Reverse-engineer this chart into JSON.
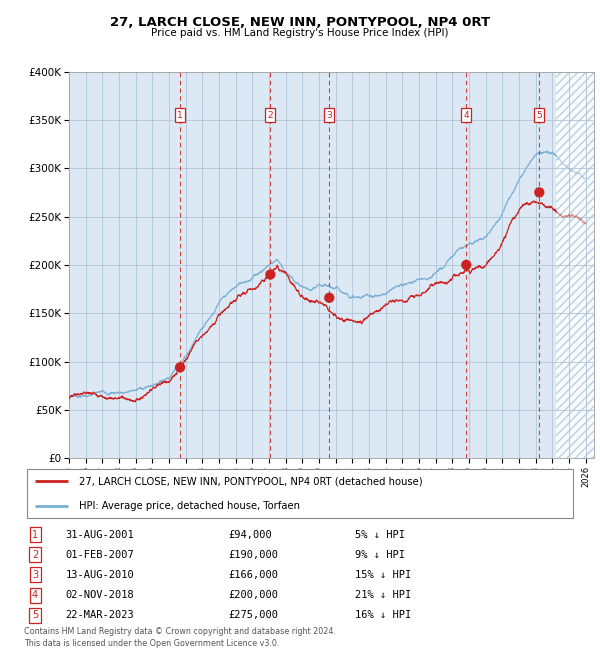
{
  "title": "27, LARCH CLOSE, NEW INN, PONTYPOOL, NP4 0RT",
  "subtitle": "Price paid vs. HM Land Registry's House Price Index (HPI)",
  "legend_line1": "27, LARCH CLOSE, NEW INN, PONTYPOOL, NP4 0RT (detached house)",
  "legend_line2": "HPI: Average price, detached house, Torfaen",
  "footer_line1": "Contains HM Land Registry data © Crown copyright and database right 2024.",
  "footer_line2": "This data is licensed under the Open Government Licence v3.0.",
  "ylim": [
    0,
    400000
  ],
  "yticks": [
    0,
    50000,
    100000,
    150000,
    200000,
    250000,
    300000,
    350000,
    400000
  ],
  "ylabels": [
    "£0",
    "£50K",
    "£100K",
    "£150K",
    "£200K",
    "£250K",
    "£300K",
    "£350K",
    "£400K"
  ],
  "xlim_start": 1995.0,
  "xlim_end": 2026.5,
  "transactions": [
    {
      "num": 1,
      "date_str": "31-AUG-2001",
      "date_x": 2001.664,
      "price": 94000,
      "pct": "5",
      "dir": "↓"
    },
    {
      "num": 2,
      "date_str": "01-FEB-2007",
      "date_x": 2007.083,
      "price": 190000,
      "pct": "9",
      "dir": "↓"
    },
    {
      "num": 3,
      "date_str": "13-AUG-2010",
      "date_x": 2010.617,
      "price": 166000,
      "pct": "15",
      "dir": "↓"
    },
    {
      "num": 4,
      "date_str": "02-NOV-2018",
      "date_x": 2018.836,
      "price": 200000,
      "pct": "21",
      "dir": "↓"
    },
    {
      "num": 5,
      "date_str": "22-MAR-2023",
      "date_x": 2023.219,
      "price": 275000,
      "pct": "16",
      "dir": "↓"
    }
  ],
  "hpi_color": "#7bafd4",
  "price_color": "#cc2222",
  "dot_color": "#cc2222",
  "vline_color": "#cc2222",
  "bg_color": "#dce9f5",
  "grid_color": "#b0c4d8",
  "box_color": "#cc2222",
  "future_cutoff": 2024.25,
  "hpi_keypoints": [
    [
      1995.0,
      64000
    ],
    [
      1996.0,
      66000
    ],
    [
      1997.0,
      68000
    ],
    [
      1998.0,
      70000
    ],
    [
      1999.0,
      73000
    ],
    [
      2000.0,
      78000
    ],
    [
      2001.0,
      90000
    ],
    [
      2002.0,
      115000
    ],
    [
      2003.0,
      148000
    ],
    [
      2004.0,
      175000
    ],
    [
      2005.0,
      188000
    ],
    [
      2006.0,
      200000
    ],
    [
      2007.0,
      215000
    ],
    [
      2007.5,
      222000
    ],
    [
      2008.0,
      210000
    ],
    [
      2008.5,
      200000
    ],
    [
      2009.0,
      195000
    ],
    [
      2009.5,
      190000
    ],
    [
      2010.0,
      192000
    ],
    [
      2010.5,
      188000
    ],
    [
      2011.0,
      185000
    ],
    [
      2011.5,
      182000
    ],
    [
      2012.0,
      180000
    ],
    [
      2012.5,
      178000
    ],
    [
      2013.0,
      180000
    ],
    [
      2013.5,
      181000
    ],
    [
      2014.0,
      183000
    ],
    [
      2014.5,
      186000
    ],
    [
      2015.0,
      190000
    ],
    [
      2015.5,
      193000
    ],
    [
      2016.0,
      196000
    ],
    [
      2016.5,
      200000
    ],
    [
      2017.0,
      205000
    ],
    [
      2017.5,
      210000
    ],
    [
      2018.0,
      218000
    ],
    [
      2018.5,
      228000
    ],
    [
      2019.0,
      235000
    ],
    [
      2019.5,
      238000
    ],
    [
      2020.0,
      240000
    ],
    [
      2020.5,
      252000
    ],
    [
      2021.0,
      268000
    ],
    [
      2021.5,
      285000
    ],
    [
      2022.0,
      305000
    ],
    [
      2022.5,
      322000
    ],
    [
      2023.0,
      335000
    ],
    [
      2023.5,
      340000
    ],
    [
      2024.0,
      338000
    ],
    [
      2024.5,
      330000
    ],
    [
      2025.0,
      325000
    ],
    [
      2025.5,
      320000
    ],
    [
      2026.0,
      315000
    ]
  ],
  "pp_keypoints": [
    [
      1995.0,
      62000
    ],
    [
      1996.0,
      63500
    ],
    [
      1997.0,
      65000
    ],
    [
      1998.0,
      67000
    ],
    [
      1999.0,
      70000
    ],
    [
      2000.0,
      75000
    ],
    [
      2001.0,
      85000
    ],
    [
      2001.664,
      94000
    ],
    [
      2002.0,
      108000
    ],
    [
      2003.0,
      138000
    ],
    [
      2004.0,
      162000
    ],
    [
      2005.0,
      175000
    ],
    [
      2006.0,
      183000
    ],
    [
      2007.0,
      192000
    ],
    [
      2007.083,
      190000
    ],
    [
      2007.5,
      200000
    ],
    [
      2008.0,
      195000
    ],
    [
      2008.5,
      185000
    ],
    [
      2009.0,
      178000
    ],
    [
      2009.5,
      172000
    ],
    [
      2010.0,
      170000
    ],
    [
      2010.617,
      166000
    ],
    [
      2011.0,
      163000
    ],
    [
      2011.5,
      160000
    ],
    [
      2012.0,
      158000
    ],
    [
      2012.5,
      157000
    ],
    [
      2013.0,
      159000
    ],
    [
      2013.5,
      161000
    ],
    [
      2014.0,
      163000
    ],
    [
      2014.5,
      166000
    ],
    [
      2015.0,
      169000
    ],
    [
      2015.5,
      172000
    ],
    [
      2016.0,
      174000
    ],
    [
      2016.5,
      177000
    ],
    [
      2017.0,
      180000
    ],
    [
      2017.5,
      185000
    ],
    [
      2018.0,
      191000
    ],
    [
      2018.5,
      196000
    ],
    [
      2018.836,
      200000
    ],
    [
      2019.0,
      202000
    ],
    [
      2019.5,
      205000
    ],
    [
      2020.0,
      207000
    ],
    [
      2020.5,
      218000
    ],
    [
      2021.0,
      232000
    ],
    [
      2021.5,
      248000
    ],
    [
      2022.0,
      262000
    ],
    [
      2022.5,
      272000
    ],
    [
      2023.0,
      276000
    ],
    [
      2023.219,
      275000
    ],
    [
      2023.5,
      272000
    ],
    [
      2024.0,
      268000
    ],
    [
      2024.5,
      263000
    ],
    [
      2025.0,
      260000
    ],
    [
      2025.5,
      258000
    ],
    [
      2026.0,
      255000
    ]
  ]
}
